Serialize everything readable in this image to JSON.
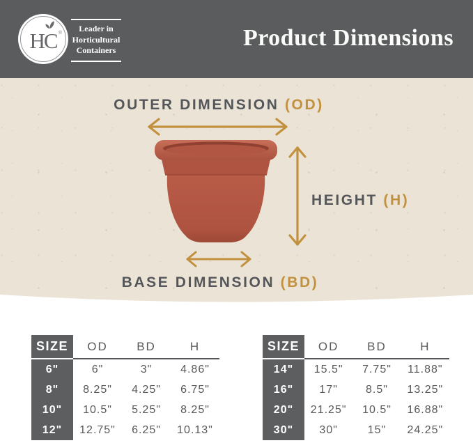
{
  "brand": {
    "logo_monogram": "HC",
    "registered_mark": "®",
    "tagline_line1": "Leader in",
    "tagline_line2": "Horticultural",
    "tagline_line3": "Containers"
  },
  "header": {
    "title": "Product Dimensions"
  },
  "diagram": {
    "outer_label": "OUTER DIMENSION ",
    "outer_abbr": "(OD)",
    "height_label": "HEIGHT ",
    "height_abbr": "(H)",
    "base_label": "BASE DIMENSION ",
    "base_abbr": "(BD)"
  },
  "tables": [
    {
      "headers": [
        "SIZE",
        "OD",
        "BD",
        "H"
      ],
      "rows": [
        [
          "6\"",
          "6\"",
          "3\"",
          "4.86\""
        ],
        [
          "8\"",
          "8.25\"",
          "4.25\"",
          "6.75\""
        ],
        [
          "10\"",
          "10.5\"",
          "5.25\"",
          "8.25\""
        ],
        [
          "12\"",
          "12.75\"",
          "6.25\"",
          "10.13\""
        ]
      ]
    },
    {
      "headers": [
        "SIZE",
        "OD",
        "BD",
        "H"
      ],
      "rows": [
        [
          "14\"",
          "15.5\"",
          "7.75\"",
          "11.88\""
        ],
        [
          "16\"",
          "17\"",
          "8.5\"",
          "13.25\""
        ],
        [
          "20\"",
          "21.25\"",
          "10.5\"",
          "16.88\""
        ],
        [
          "30\"",
          "30\"",
          "15\"",
          "24.25\""
        ]
      ]
    }
  ],
  "colors": {
    "header_bg": "#5b5c5e",
    "hero_bg": "#ebe4d6",
    "accent_gold": "#c2913f",
    "text_dark": "#54565a",
    "table_dark": "#5d5e60",
    "pot_terracotta": "#b45945"
  }
}
